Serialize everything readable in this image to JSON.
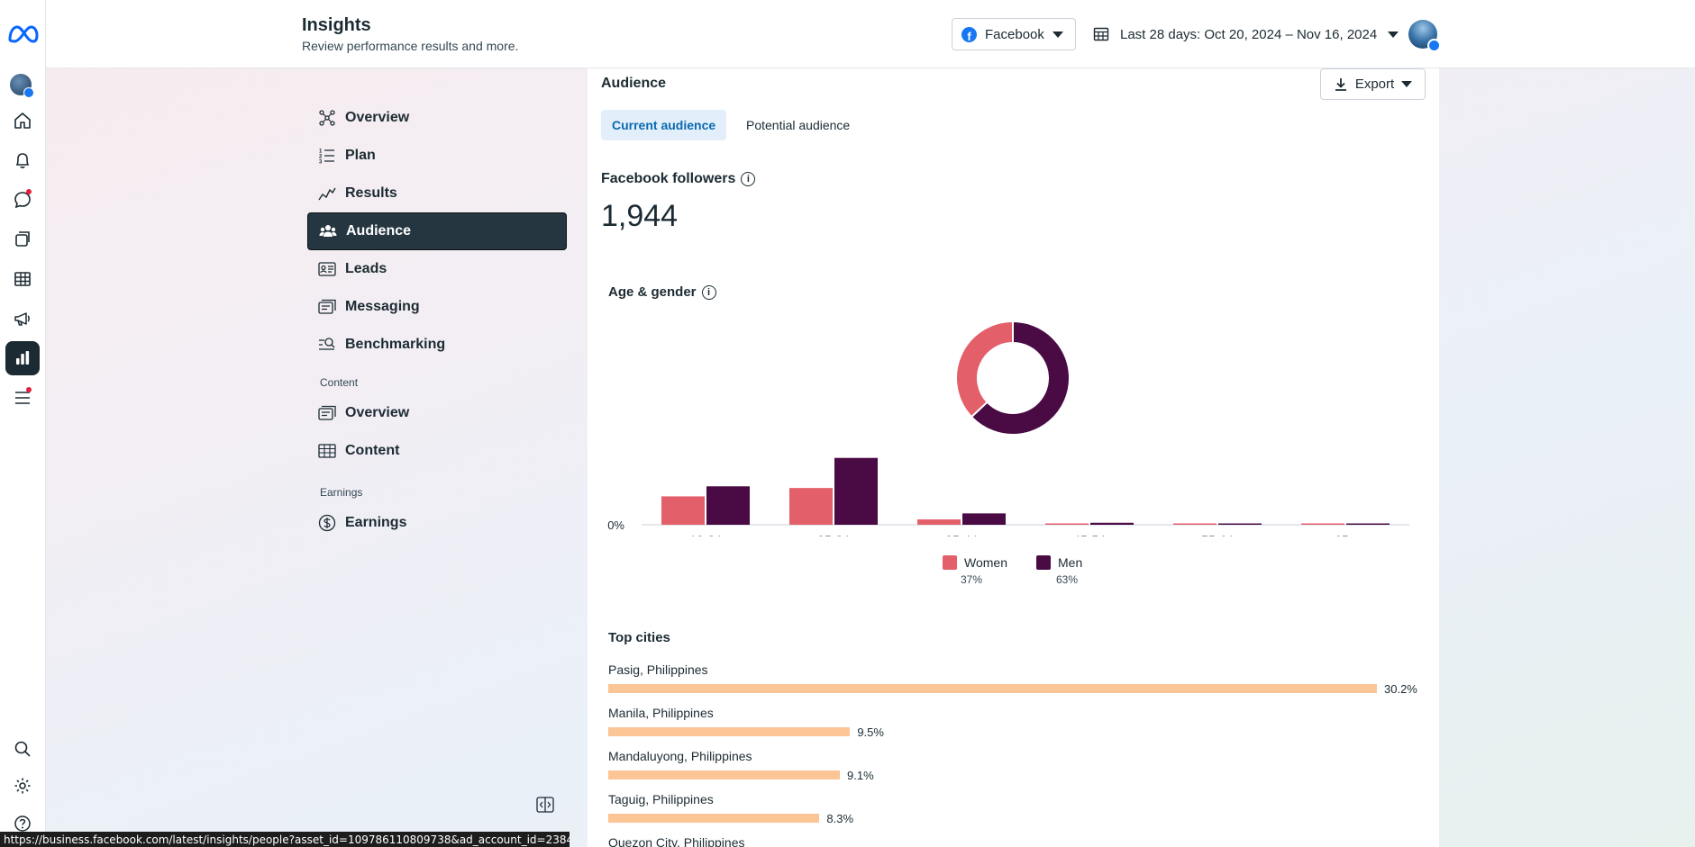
{
  "header": {
    "title": "Insights",
    "subtitle": "Review performance results and more.",
    "platform": "Facebook",
    "date_range": "Last 28 days: Oct 20, 2024 – Nov 16, 2024"
  },
  "nav": {
    "items": [
      {
        "label": "Overview",
        "icon": "overview-icon"
      },
      {
        "label": "Plan",
        "icon": "plan-icon"
      },
      {
        "label": "Results",
        "icon": "results-icon"
      },
      {
        "label": "Audience",
        "icon": "audience-icon",
        "active": true
      },
      {
        "label": "Leads",
        "icon": "leads-icon"
      },
      {
        "label": "Messaging",
        "icon": "messaging-icon"
      },
      {
        "label": "Benchmarking",
        "icon": "benchmarking-icon"
      }
    ],
    "content_section": "Content",
    "content_items": [
      {
        "label": "Overview",
        "icon": "content-overview-icon"
      },
      {
        "label": "Content",
        "icon": "content-table-icon"
      }
    ],
    "earnings_section": "Earnings",
    "earnings_items": [
      {
        "label": "Earnings",
        "icon": "dollar-icon"
      }
    ]
  },
  "main": {
    "section_title": "Audience",
    "export_label": "Export",
    "tabs": [
      "Current audience",
      "Potential audience"
    ],
    "followers_label": "Facebook followers",
    "followers_value": "1,944",
    "age_gender_title": "Age & gender",
    "top_cities_title": "Top cities"
  },
  "chart_data": {
    "type": "bar",
    "title": "Age & gender",
    "categories": [
      "18-24",
      "25-34",
      "35-44",
      "45-54",
      "55-64",
      "65+"
    ],
    "series": [
      {
        "name": "Women",
        "percent": "37%",
        "color": "#e35f6a",
        "values": [
          8.5,
          11.0,
          1.6,
          0.4,
          0.2,
          0.2
        ]
      },
      {
        "name": "Men",
        "percent": "63%",
        "color": "#4a0b45",
        "values": [
          11.5,
          20.0,
          3.4,
          0.6,
          0.3,
          0.3
        ]
      }
    ],
    "y_tick_label": "0%",
    "donut": {
      "women_share": 0.37,
      "men_share": 0.63
    }
  },
  "cities": [
    {
      "name": "Pasig, Philippines",
      "value": 30.2,
      "label": "30.2%"
    },
    {
      "name": "Manila, Philippines",
      "value": 9.5,
      "label": "9.5%"
    },
    {
      "name": "Mandaluyong, Philippines",
      "value": 9.1,
      "label": "9.1%"
    },
    {
      "name": "Taguig, Philippines",
      "value": 8.3,
      "label": "8.3%"
    },
    {
      "name": "Quezon City, Philippines"
    }
  ],
  "status_url": "https://business.facebook.com/latest/insights/people?asset_id=109786110809738&ad_account_id=23849613038700..."
}
